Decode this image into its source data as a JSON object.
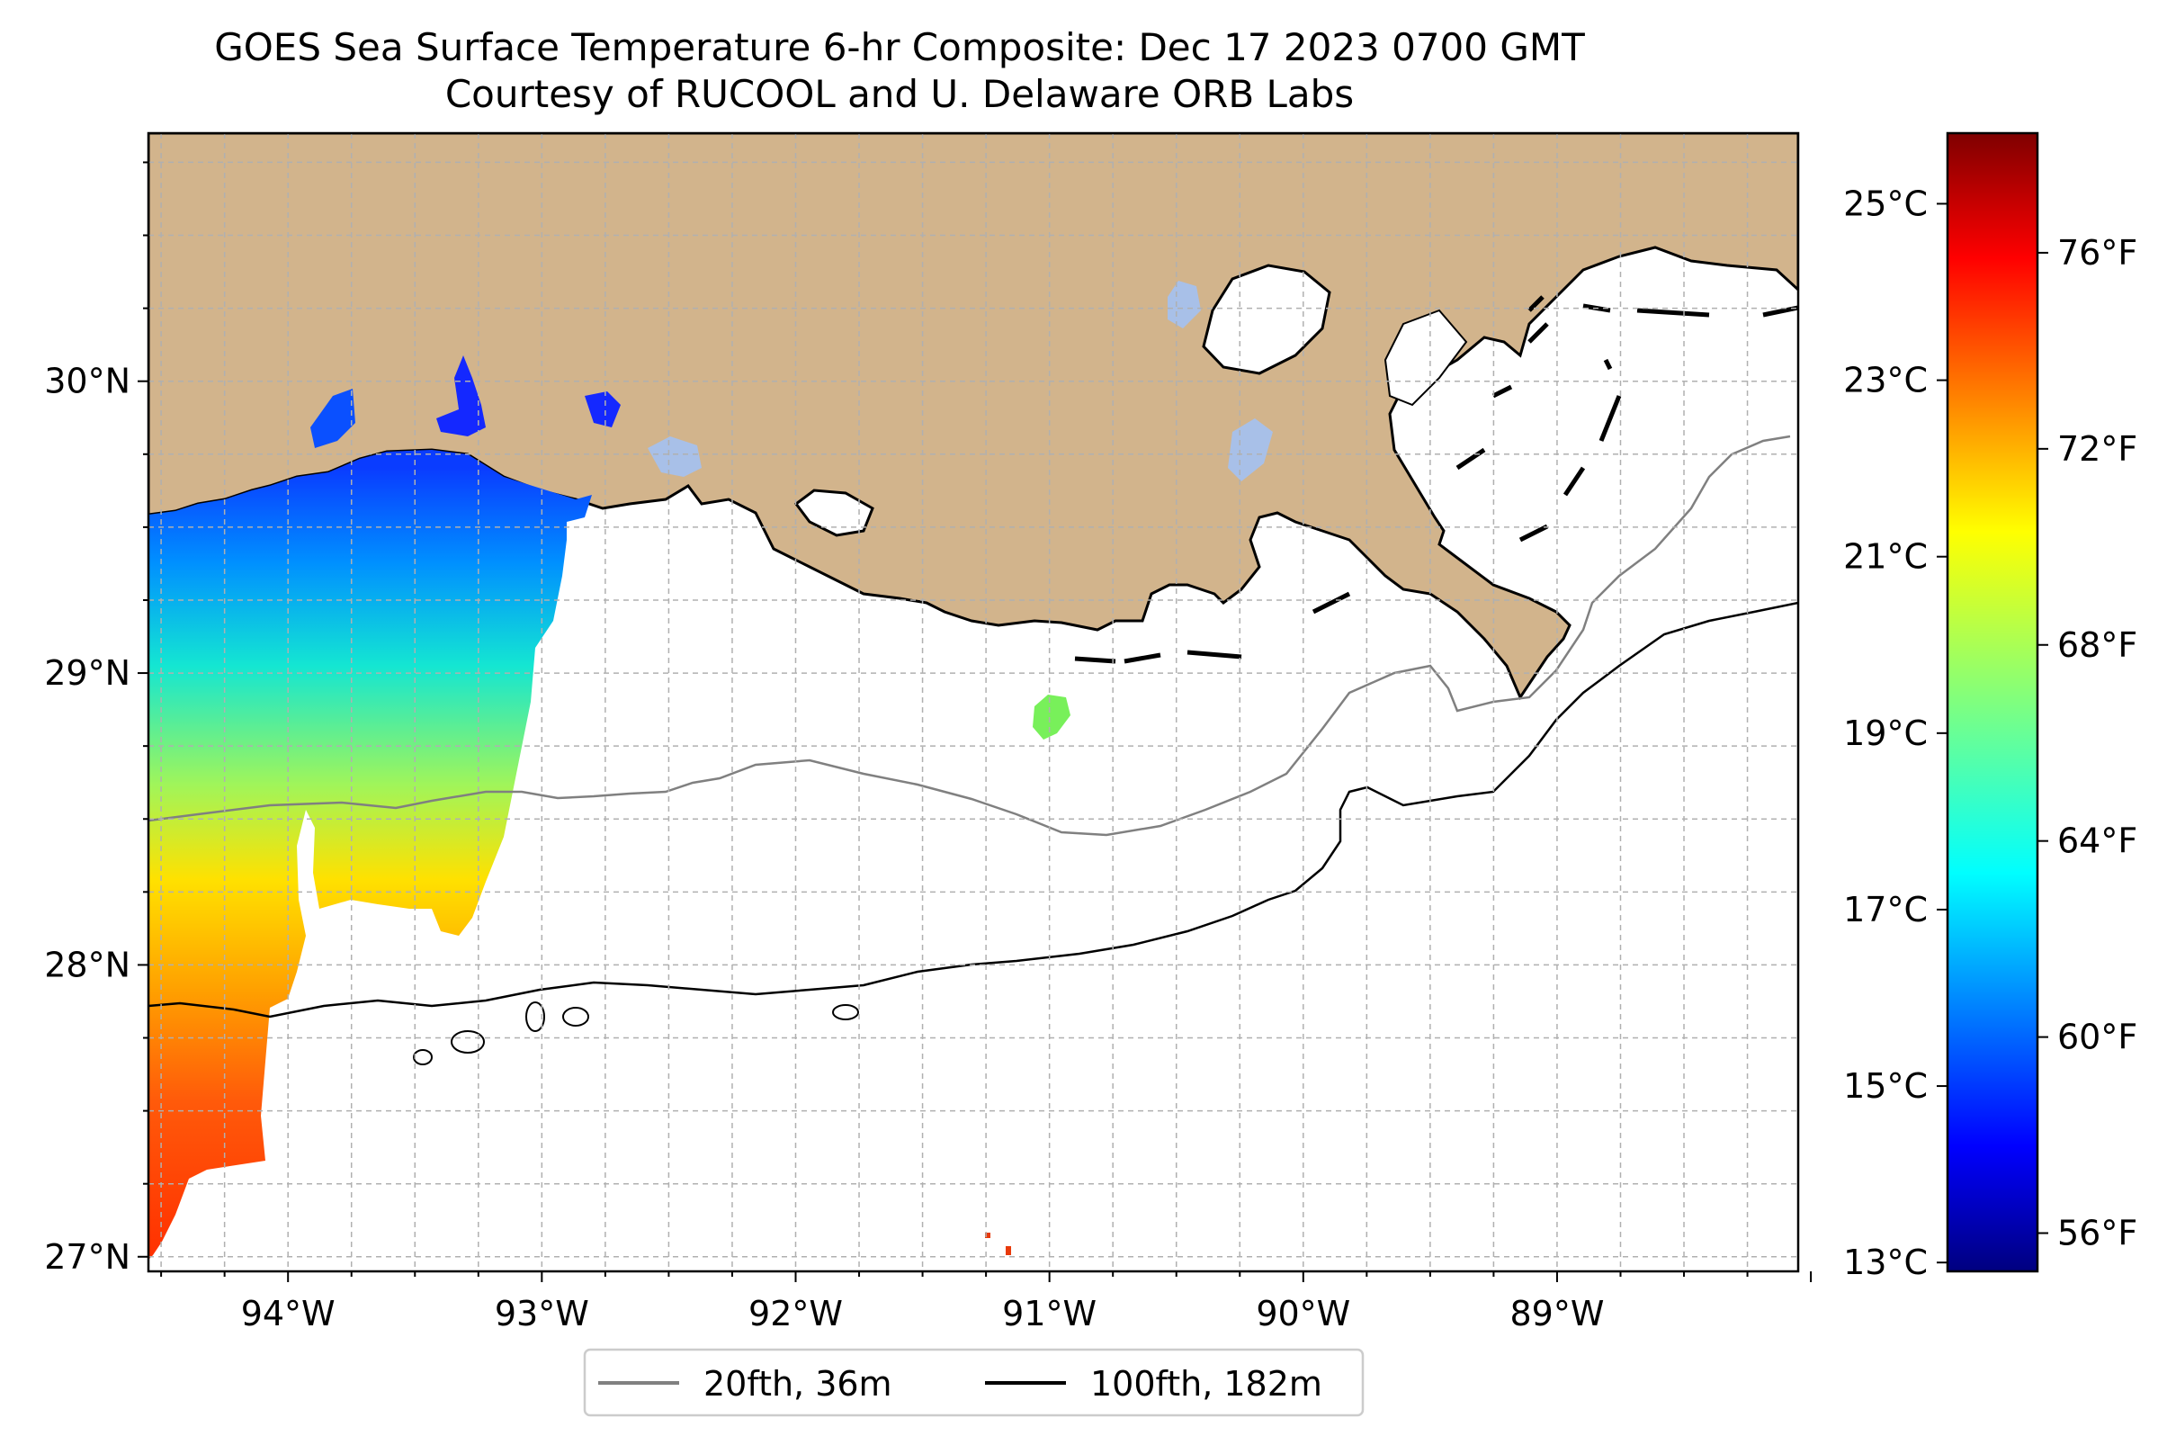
{
  "title": {
    "line1": "GOES Sea Surface Temperature 6-hr Composite: Dec 17 2023 0700 GMT",
    "line2": "Courtesy of RUCOOL and U. Delaware ORB Labs"
  },
  "map": {
    "lon_range": [
      -94.55,
      -88.05
    ],
    "lat_range": [
      26.95,
      30.85
    ],
    "lat_ticks": [
      {
        "value": 27,
        "label": "27°N"
      },
      {
        "value": 28,
        "label": "28°N"
      },
      {
        "value": 29,
        "label": "29°N"
      },
      {
        "value": 30,
        "label": "30°N"
      }
    ],
    "lon_ticks": [
      {
        "value": -94,
        "label": "94°W"
      },
      {
        "value": -93,
        "label": "93°W"
      },
      {
        "value": -92,
        "label": "92°W"
      },
      {
        "value": -91,
        "label": "91°W"
      },
      {
        "value": -90,
        "label": "90°W"
      },
      {
        "value": -89,
        "label": "89°W"
      }
    ],
    "gridlines": "dashed",
    "land_color": "#d2b48c",
    "contour_20fth_color": "#808080",
    "contour_100fth_color": "#000000"
  },
  "colorbar": {
    "colormap": "jet",
    "celsius_ticks": [
      {
        "value": 13,
        "label": "13°C"
      },
      {
        "value": 15,
        "label": "15°C"
      },
      {
        "value": 17,
        "label": "17°C"
      },
      {
        "value": 19,
        "label": "19°C"
      },
      {
        "value": 21,
        "label": "21°C"
      },
      {
        "value": 23,
        "label": "23°C"
      },
      {
        "value": 25,
        "label": "25°C"
      }
    ],
    "fahrenheit_ticks": [
      {
        "value": 56,
        "label": "56°F"
      },
      {
        "value": 60,
        "label": "60°F"
      },
      {
        "value": 64,
        "label": "64°F"
      },
      {
        "value": 68,
        "label": "68°F"
      },
      {
        "value": 72,
        "label": "72°F"
      },
      {
        "value": 76,
        "label": "76°F"
      }
    ]
  },
  "legend": {
    "entries": [
      {
        "label": "20fth, 36m",
        "color": "#808080"
      },
      {
        "label": "100fth, 182m",
        "color": "#000000"
      }
    ]
  }
}
